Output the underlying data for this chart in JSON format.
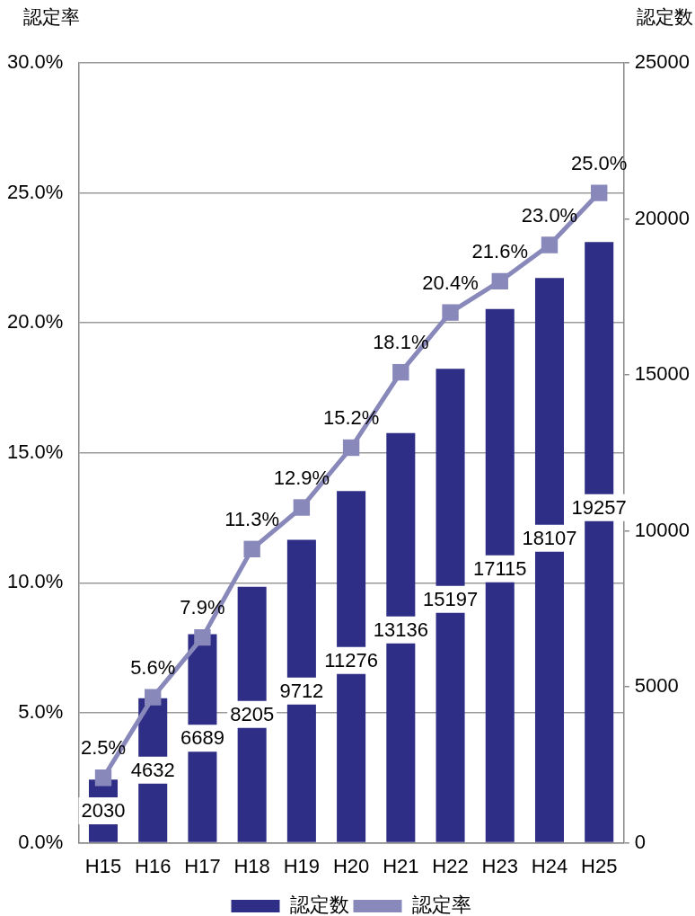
{
  "chart_data": {
    "type": "bar",
    "ylabel": "認定率",
    "y2label": "認定数",
    "categories": [
      "H15",
      "H16",
      "H17",
      "H18",
      "H19",
      "H20",
      "H21",
      "H22",
      "H23",
      "H24",
      "H25"
    ],
    "series": [
      {
        "name": "認定数",
        "axis": "y2",
        "color": "#2e2e87",
        "values": [
          2030,
          4632,
          6689,
          8205,
          9712,
          11276,
          13136,
          15197,
          17115,
          18107,
          19257
        ]
      },
      {
        "name": "認定率",
        "type": "line",
        "axis": "y",
        "color": "#8888bb",
        "marker": "square",
        "values": [
          2.5,
          5.6,
          7.9,
          11.3,
          12.9,
          15.2,
          18.1,
          20.4,
          21.6,
          23.0,
          25.0
        ],
        "value_labels": [
          "2.5%",
          "5.6%",
          "7.9%",
          "11.3%",
          "12.9%",
          "15.2%",
          "18.1%",
          "20.4%",
          "21.6%",
          "23.0%",
          "25.0%"
        ]
      }
    ],
    "ylim": [
      0,
      30
    ],
    "yticks": [
      {
        "value": 0,
        "label": "0.0%"
      },
      {
        "value": 5,
        "label": "5.0%"
      },
      {
        "value": 10,
        "label": "10.0%"
      },
      {
        "value": 15,
        "label": "15.0%"
      },
      {
        "value": 20,
        "label": "20.0%"
      },
      {
        "value": 25,
        "label": "25.0%"
      },
      {
        "value": 30,
        "label": "30.0%"
      }
    ],
    "y2lim": [
      0,
      25000
    ],
    "y2ticks": [
      0,
      5000,
      10000,
      15000,
      20000,
      25000
    ],
    "grid": "y",
    "legend": "bottom",
    "data_labels": true
  }
}
